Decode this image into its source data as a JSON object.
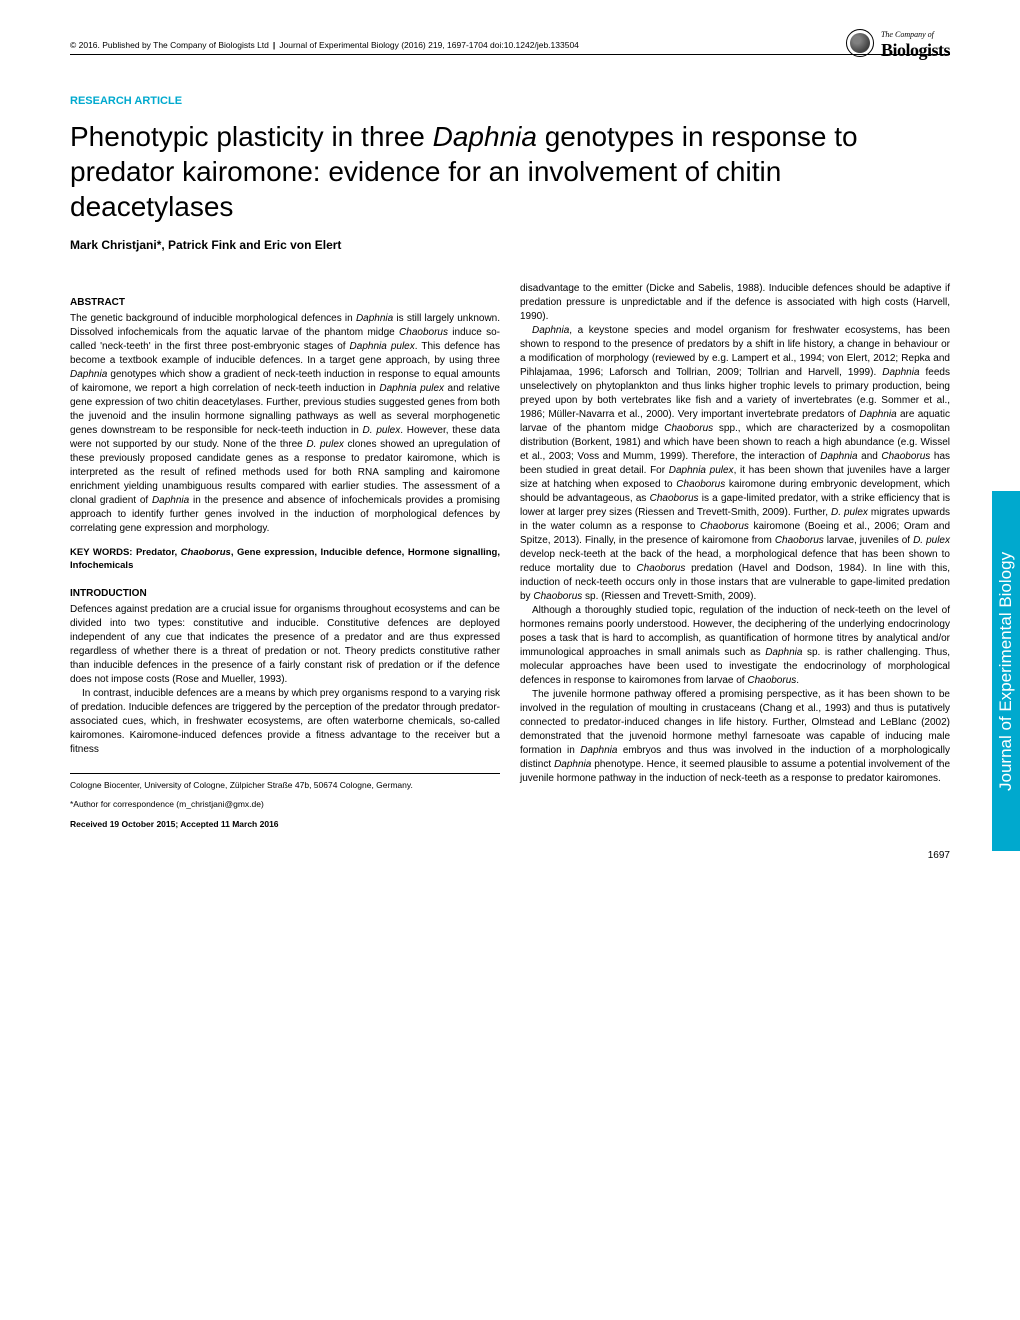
{
  "header": {
    "copyright": "© 2016. Published by The Company of Biologists Ltd",
    "journal_info": "Journal of Experimental Biology (2016) 219, 1697-1704 doi:10.1242/jeb.133504"
  },
  "logo": {
    "small_text": "The Company of",
    "main_text": "Biologists"
  },
  "article_type": "RESEARCH ARTICLE",
  "title_html": "Phenotypic plasticity in three <em>Daphnia</em> genotypes in response to predator kairomone: evidence for an involvement of chitin deacetylases",
  "authors": "Mark Christjani*, Patrick Fink and Eric von Elert",
  "abstract": {
    "heading": "ABSTRACT",
    "text_html": "The genetic background of inducible morphological defences in <em>Daphnia</em> is still largely unknown. Dissolved infochemicals from the aquatic larvae of the phantom midge <em>Chaoborus</em> induce so-called 'neck-teeth' in the first three post-embryonic stages of <em>Daphnia pulex</em>. This defence has become a textbook example of inducible defences. In a target gene approach, by using three <em>Daphnia</em> genotypes which show a gradient of neck-teeth induction in response to equal amounts of kairomone, we report a high correlation of neck-teeth induction in <em>Daphnia pulex</em> and relative gene expression of two chitin deacetylases. Further, previous studies suggested genes from both the juvenoid and the insulin hormone signalling pathways as well as several morphogenetic genes downstream to be responsible for neck-teeth induction in <em>D. pulex</em>. However, these data were not supported by our study. None of the three <em>D. pulex</em> clones showed an upregulation of these previously proposed candidate genes as a response to predator kairomone, which is interpreted as the result of refined methods used for both RNA sampling and kairomone enrichment yielding unambiguous results compared with earlier studies. The assessment of a clonal gradient of <em>Daphnia</em> in the presence and absence of infochemicals provides a promising approach to identify further genes involved in the induction of morphological defences by correlating gene expression and morphology."
  },
  "keywords_html": "KEY WORDS: Predator, <em>Chaoborus</em>, Gene expression, Inducible defence, Hormone signalling, Infochemicals",
  "introduction": {
    "heading": "INTRODUCTION",
    "para1": "Defences against predation are a crucial issue for organisms throughout ecosystems and can be divided into two types: constitutive and inducible. Constitutive defences are deployed independent of any cue that indicates the presence of a predator and are thus expressed regardless of whether there is a threat of predation or not. Theory predicts constitutive rather than inducible defences in the presence of a fairly constant risk of predation or if the defence does not impose costs (Rose and Mueller, 1993).",
    "para2": "In contrast, inducible defences are a means by which prey organisms respond to a varying risk of predation. Inducible defences are triggered by the perception of the predator through predator-associated cues, which, in freshwater ecosystems, are often waterborne chemicals, so-called kairomones. Kairomone-induced defences provide a fitness advantage to the receiver but a fitness"
  },
  "right_column": {
    "para1": "disadvantage to the emitter (Dicke and Sabelis, 1988). Inducible defences should be adaptive if predation pressure is unpredictable and if the defence is associated with high costs (Harvell, 1990).",
    "para2_html": "<em>Daphnia</em>, a keystone species and model organism for freshwater ecosystems, has been shown to respond to the presence of predators by a shift in life history, a change in behaviour or a modification of morphology (reviewed by e.g. Lampert et al., 1994; von Elert, 2012; Repka and Pihlajamaa, 1996; Laforsch and Tollrian, 2009; Tollrian and Harvell, 1999). <em>Daphnia</em> feeds unselectively on phytoplankton and thus links higher trophic levels to primary production, being preyed upon by both vertebrates like fish and a variety of invertebrates (e.g. Sommer et al., 1986; Müller-Navarra et al., 2000). Very important invertebrate predators of <em>Daphnia</em> are aquatic larvae of the phantom midge <em>Chaoborus</em> spp., which are characterized by a cosmopolitan distribution (Borkent, 1981) and which have been shown to reach a high abundance (e.g. Wissel et al., 2003; Voss and Mumm, 1999). Therefore, the interaction of <em>Daphnia</em> and <em>Chaoborus</em> has been studied in great detail. For <em>Daphnia pulex</em>, it has been shown that juveniles have a larger size at hatching when exposed to <em>Chaoborus</em> kairomone during embryonic development, which should be advantageous, as <em>Chaoborus</em> is a gape-limited predator, with a strike efficiency that is lower at larger prey sizes (Riessen and Trevett-Smith, 2009). Further, <em>D. pulex</em> migrates upwards in the water column as a response to <em>Chaoborus</em> kairomone (Boeing et al., 2006; Oram and Spitze, 2013). Finally, in the presence of kairomone from <em>Chaoborus</em> larvae, juveniles of <em>D. pulex</em> develop neck-teeth at the back of the head, a morphological defence that has been shown to reduce mortality due to <em>Chaoborus</em> predation (Havel and Dodson, 1984). In line with this, induction of neck-teeth occurs only in those instars that are vulnerable to gape-limited predation by <em>Chaoborus</em> sp. (Riessen and Trevett-Smith, 2009).",
    "para3_html": "Although a thoroughly studied topic, regulation of the induction of neck-teeth on the level of hormones remains poorly understood. However, the deciphering of the underlying endocrinology poses a task that is hard to accomplish, as quantification of hormone titres by analytical and/or immunological approaches in small animals such as <em>Daphnia</em> sp. is rather challenging. Thus, molecular approaches have been used to investigate the endocrinology of morphological defences in response to kairomones from larvae of <em>Chaoborus</em>.",
    "para4_html": "The juvenile hormone pathway offered a promising perspective, as it has been shown to be involved in the regulation of moulting in crustaceans (Chang et al., 1993) and thus is putatively connected to predator-induced changes in life history. Further, Olmstead and LeBlanc (2002) demonstrated that the juvenoid hormone methyl farnesoate was capable of inducing male formation in <em>Daphnia</em> embryos and thus was involved in the induction of a morphologically distinct <em>Daphnia</em> phenotype. Hence, it seemed plausible to assume a potential involvement of the juvenile hormone pathway in the induction of neck-teeth as a response to predator kairomones."
  },
  "footer": {
    "affiliation": "Cologne Biocenter, University of Cologne, Zülpicher Straße 47b, 50674 Cologne, Germany.",
    "correspondence": "*Author for correspondence (m_christjani@gmx.de)",
    "dates": "Received 19 October 2015; Accepted 11 March 2016"
  },
  "page_number": "1697",
  "side_tab": "Journal of Experimental Biology",
  "colors": {
    "accent": "#00a9ce",
    "text": "#000000",
    "background": "#ffffff"
  }
}
